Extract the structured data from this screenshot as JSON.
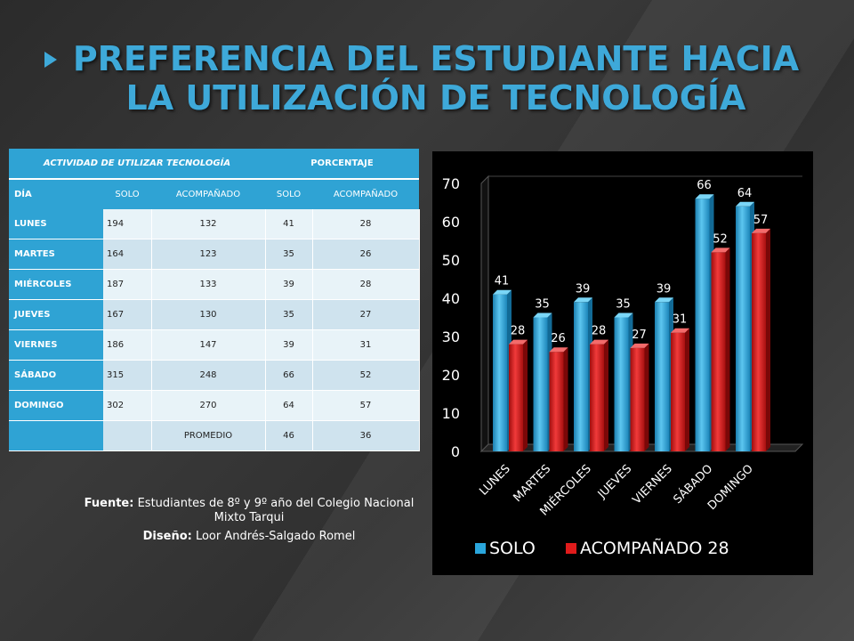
{
  "title": "PREFERENCIA DEL ESTUDIANTE HACIA LA UTILIZACIÓN DE TECNOLOGÍA",
  "table": {
    "header": [
      "ACTIVIDAD DE UTILIZAR TECNOLOGÍA",
      "PORCENTAJE"
    ],
    "subheader": [
      "DÍA",
      "SOLO",
      "ACOMPAÑADO",
      "SOLO",
      "ACOMPAÑADO"
    ],
    "rows": [
      {
        "day": "LUNES",
        "solo": "194",
        "acomp": "132",
        "solo_pct": "41",
        "acomp_pct": "28"
      },
      {
        "day": "MARTES",
        "solo": "164",
        "acomp": "123",
        "solo_pct": "35",
        "acomp_pct": "26"
      },
      {
        "day": "MIÉRCOLES",
        "solo": "187",
        "acomp": "133",
        "solo_pct": "39",
        "acomp_pct": "28"
      },
      {
        "day": "JUEVES",
        "solo": "167",
        "acomp": "130",
        "solo_pct": "35",
        "acomp_pct": "27"
      },
      {
        "day": "VIERNES",
        "solo": "186",
        "acomp": "147",
        "solo_pct": "39",
        "acomp_pct": "31"
      },
      {
        "day": "SÁBADO",
        "solo": "315",
        "acomp": "248",
        "solo_pct": "66",
        "acomp_pct": "52"
      },
      {
        "day": "DOMINGO",
        "solo": "302",
        "acomp": "270",
        "solo_pct": "64",
        "acomp_pct": "57"
      }
    ],
    "footer": {
      "label": "PROMEDIO",
      "solo_pct": "46",
      "acomp_pct": "36"
    }
  },
  "source": {
    "fuente_label": "Fuente:",
    "fuente_text": "Estudiantes de 8º y 9º año del Colegio Nacional Mixto Tarqui",
    "diseno_label": "Diseño:",
    "diseno_text": "Loor Andrés-Salgado Romel"
  },
  "colors": {
    "accent": "#3ea9d9",
    "solo": "#2aa6dc",
    "acompanado": "#e01b1b",
    "chart_bg": "#000000"
  },
  "chart_data": {
    "type": "bar",
    "categories": [
      "LUNES",
      "MARTES",
      "MIÉRCOLES",
      "JUEVES",
      "VIERNES",
      "SÁBADO",
      "DOMINGO"
    ],
    "series": [
      {
        "name": "SOLO",
        "values": [
          41,
          35,
          39,
          35,
          39,
          66,
          64
        ]
      },
      {
        "name": "ACOMPAÑADO 28",
        "values": [
          28,
          26,
          28,
          27,
          31,
          52,
          57
        ]
      }
    ],
    "ylim": [
      0,
      70
    ],
    "yticks": [
      0,
      10,
      20,
      30,
      40,
      50,
      60,
      70
    ],
    "legend_position": "bottom",
    "grid": false,
    "data_labels": true
  }
}
